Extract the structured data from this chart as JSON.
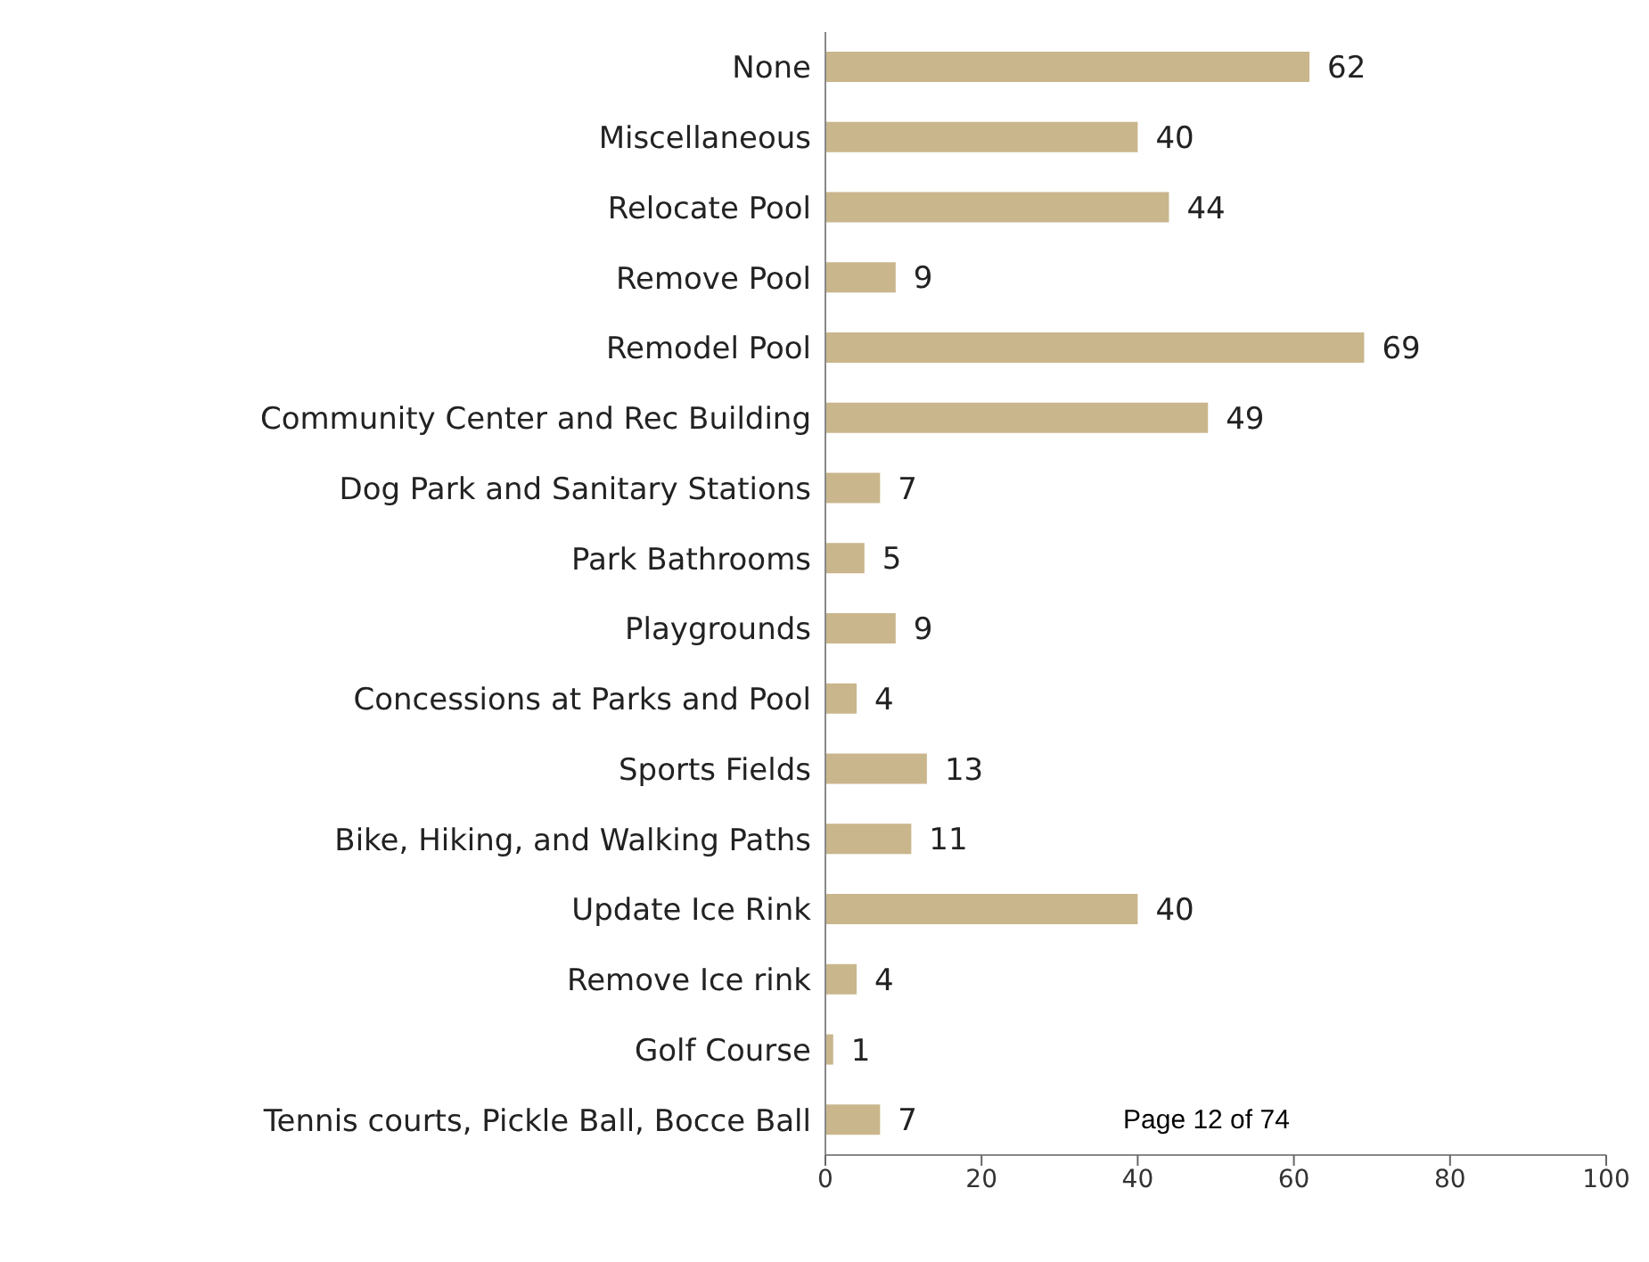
{
  "chart_data": {
    "type": "bar",
    "orientation": "horizontal",
    "categories": [
      "None",
      "Miscellaneous",
      "Relocate Pool",
      "Remove Pool",
      "Remodel Pool",
      "Community Center and Rec Building",
      "Dog Park and Sanitary Stations",
      "Park Bathrooms",
      "Playgrounds",
      "Concessions at Parks and Pool",
      "Sports Fields",
      "Bike, Hiking, and Walking Paths",
      "Update Ice Rink",
      "Remove Ice rink",
      "Golf Course",
      "Tennis courts, Pickle Ball, Bocce Ball"
    ],
    "values": [
      62,
      40,
      44,
      9,
      69,
      49,
      7,
      5,
      9,
      4,
      13,
      11,
      40,
      4,
      1,
      7
    ],
    "color": "#c9b68c",
    "xlim": [
      0,
      100
    ],
    "xticks": [
      0,
      20,
      40,
      60,
      80,
      100
    ],
    "data_labels": true,
    "annotations": [
      "Page 12 of 74"
    ]
  }
}
